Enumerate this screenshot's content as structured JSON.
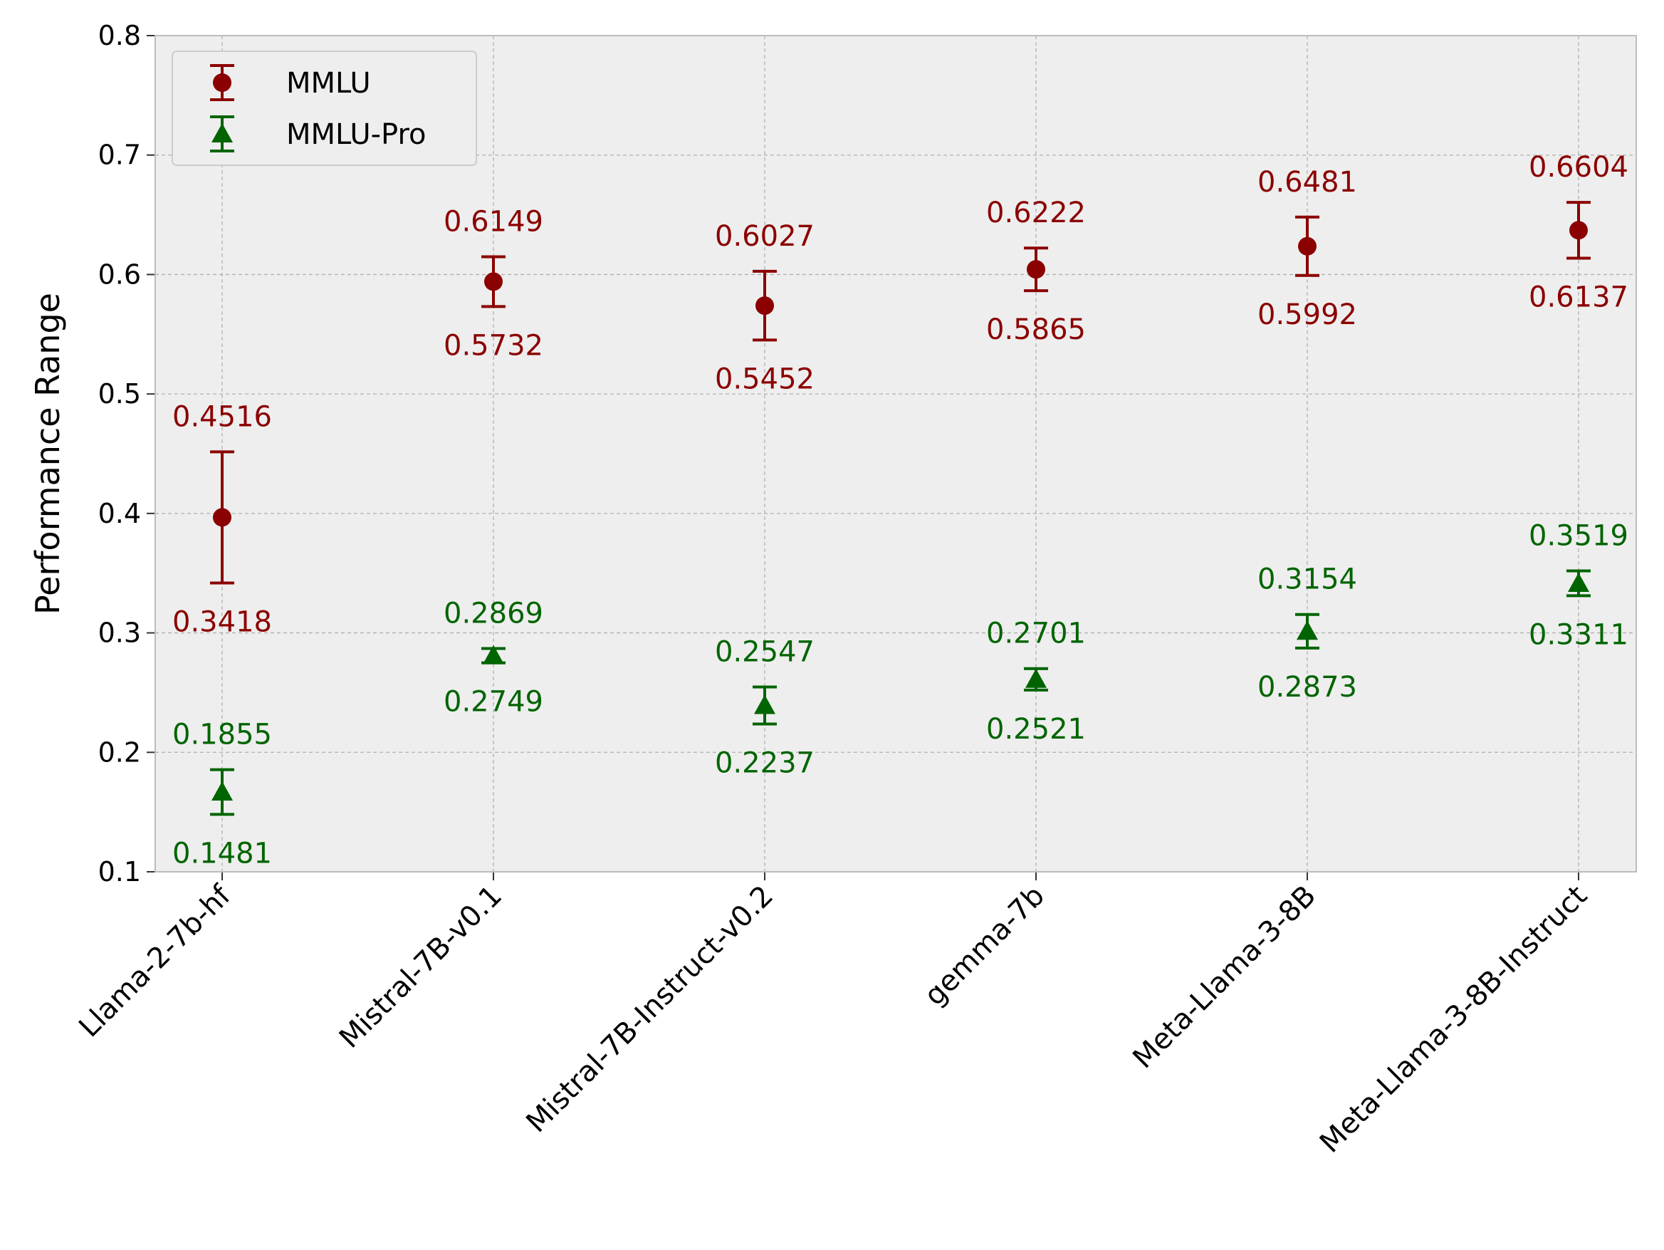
{
  "chart_data": {
    "type": "scatter",
    "subtype": "error-bar",
    "title": "",
    "xlabel": "",
    "ylabel": "Performance Range",
    "ylim": [
      0.1,
      0.8
    ],
    "yticks": [
      "0.1",
      "0.2",
      "0.3",
      "0.4",
      "0.5",
      "0.6",
      "0.7",
      "0.8"
    ],
    "grid": true,
    "legend_position": "top-left",
    "categories": [
      "Llama-2-7b-hf",
      "Mistral-7B-v0.1",
      "Mistral-7B-Instruct-v0.2",
      "gemma-7b",
      "Meta-Llama-3-8B",
      "Meta-Llama-3-8B-Instruct"
    ],
    "series": [
      {
        "name": "MMLU",
        "marker": "circle",
        "color": "#8b0000",
        "max": [
          0.4516,
          0.6149,
          0.6027,
          0.6222,
          0.6481,
          0.6604
        ],
        "min": [
          0.3418,
          0.5732,
          0.5452,
          0.5865,
          0.5992,
          0.6137
        ],
        "max_labels": [
          "0.4516",
          "0.6149",
          "0.6027",
          "0.6222",
          "0.6481",
          "0.6604"
        ],
        "min_labels": [
          "0.3418",
          "0.5732",
          "0.5452",
          "0.5865",
          "0.5992",
          "0.6137"
        ]
      },
      {
        "name": "MMLU-Pro",
        "marker": "triangle",
        "color": "#006400",
        "max": [
          0.1855,
          0.2869,
          0.2547,
          0.2701,
          0.3154,
          0.3519
        ],
        "min": [
          0.1481,
          0.2749,
          0.2237,
          0.2521,
          0.2873,
          0.3311
        ],
        "max_labels": [
          "0.1855",
          "0.2869",
          "0.2547",
          "0.2701",
          "0.3154",
          "0.3519"
        ],
        "min_labels": [
          "0.1481",
          "0.2749",
          "0.2237",
          "0.2521",
          "0.2873",
          "0.3311"
        ]
      }
    ],
    "colors": {
      "plot_background": "#eeeeee",
      "grid": "#b0b0b0",
      "frame": "#bcbcbc",
      "text": "#000000"
    }
  }
}
